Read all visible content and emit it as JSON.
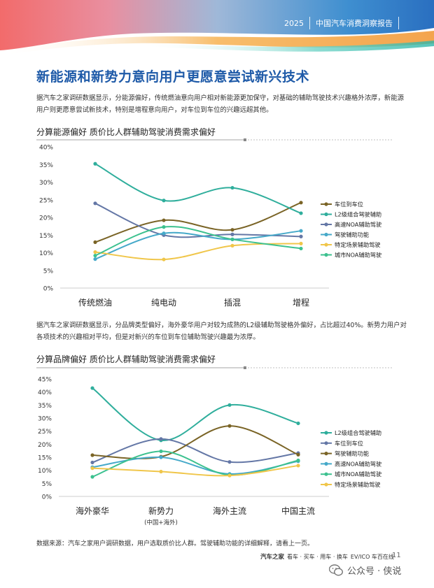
{
  "header": {
    "year": "2025",
    "report_title": "中国汽车消费洞察报告"
  },
  "section_title": "新能源和新势力意向用户更愿意尝试新兴技术",
  "intro_text": "据汽车之家调研数据显示，分能源偏好，传统燃油意向用户相对新能源更加保守，对基础的辅助驾驶技术兴趣格外浓厚，新能源用户则更愿意尝试新技术，特别是增程意向用户，对车位到车位的兴趣远超其他。",
  "middle_text": "据汽车之家调研数据显示，分品牌类型偏好，海外豪华用户对较为成熟的L2级辅助驾驶格外偏好，占比超过40%。新势力用户对各项技术的兴趣相对平均，但是对新兴的车位到车位辅助驾驶兴趣最为浓厚。",
  "colors": {
    "olive": "#7a6426",
    "teal": "#2fae9c",
    "slate": "#6477a6",
    "light_blue": "#45a9c9",
    "yellow": "#f0c64a",
    "green": "#3cc18f",
    "title_blue": "#1e5aa8"
  },
  "chart_data": [
    {
      "type": "line",
      "title": "分算能源偏好 质价比人群辅助驾驶消费需求偏好",
      "categories": [
        "传统燃油",
        "纯电动",
        "插混",
        "增程"
      ],
      "ylim": [
        0,
        40
      ],
      "yticks": [
        "0%",
        "5%",
        "10%",
        "15%",
        "20%",
        "25%",
        "30%",
        "35%",
        "40%"
      ],
      "grid": false,
      "legend_position": "right",
      "series": [
        {
          "name": "车位到车位",
          "color": "#7a6426",
          "values": [
            13.0,
            19.2,
            16.5,
            24.2
          ]
        },
        {
          "name": "L2级组合驾驶辅助",
          "color": "#2fae9c",
          "values": [
            35.2,
            24.8,
            28.4,
            21.2
          ]
        },
        {
          "name": "高速NOA辅助驾驶",
          "color": "#6477a6",
          "values": [
            24.0,
            15.0,
            15.2,
            14.6
          ]
        },
        {
          "name": "驾驶辅助功能",
          "color": "#45a9c9",
          "values": [
            8.2,
            15.5,
            13.8,
            16.2
          ]
        },
        {
          "name": "特定场景辅助驾驶",
          "color": "#f0c64a",
          "values": [
            10.2,
            8.1,
            12.0,
            12.6
          ]
        },
        {
          "name": "城市NOA辅助驾驶",
          "color": "#3cc18f",
          "values": [
            9.2,
            17.3,
            13.8,
            11.2
          ]
        }
      ]
    },
    {
      "type": "line",
      "title": "分算品牌偏好 质价比人群辅助驾驶消费需求偏好",
      "categories": [
        "海外豪华",
        "新势力",
        "海外主流",
        "中国主流"
      ],
      "category_sublabels": [
        "",
        "(中国+海外)",
        "",
        ""
      ],
      "ylim": [
        0,
        45
      ],
      "yticks": [
        "0%",
        "5%",
        "10%",
        "15%",
        "20%",
        "25%",
        "30%",
        "35%",
        "40%",
        "45%"
      ],
      "grid": false,
      "legend_position": "right",
      "series": [
        {
          "name": "L2级组合驾驶辅助",
          "color": "#2fae9c",
          "values": [
            41.5,
            21.5,
            35.0,
            28.0
          ]
        },
        {
          "name": "车位到车位",
          "color": "#6477a6",
          "values": [
            13.0,
            22.0,
            13.2,
            16.6
          ]
        },
        {
          "name": "驾驶辅助功能",
          "color": "#7a6426",
          "values": [
            15.8,
            15.2,
            27.0,
            16.0
          ]
        },
        {
          "name": "高速NOA辅助驾驶",
          "color": "#45a9c9",
          "values": [
            11.2,
            15.0,
            8.6,
            13.5
          ]
        },
        {
          "name": "城市NOA辅助驾驶",
          "color": "#3cc18f",
          "values": [
            7.5,
            17.3,
            8.2,
            13.8
          ]
        },
        {
          "name": "特定场景辅助驾驶",
          "color": "#f0c64a",
          "values": [
            10.8,
            9.5,
            8.0,
            11.8
          ]
        }
      ]
    }
  ],
  "footer": {
    "source_note": "数据来源：汽车之家用户调研数据，用户选取质价比人群。驾驶辅助功能的详细解释，请看上一页。",
    "brand_name": "汽车之家",
    "brand_slogan": "看车 · 买车 · 用车 · 换车",
    "brand_sub": "EV/ICO 车百在线",
    "page_number": "11"
  },
  "watermark": {
    "text": "公众号 · 侠说"
  }
}
